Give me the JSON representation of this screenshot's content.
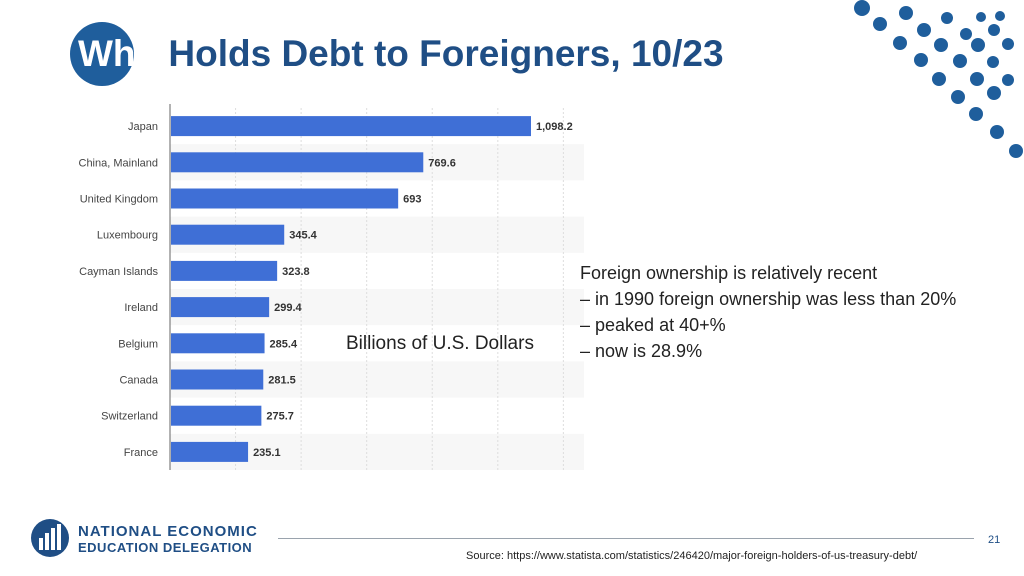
{
  "slide": {
    "title_prefix": "Who",
    "title_rest": " Holds Debt to Foreigners, 10/23",
    "units_note": "Billions of U.S. Dollars",
    "notes": [
      "Foreign ownership is relatively recent",
      "– in 1990 foreign ownership was less than 20%",
      "– peaked at 40+%",
      "– now is 28.9%"
    ],
    "page_number": "21",
    "source": "Source: https://www.statista.com/statistics/246420/major-foreign-holders-of-us-treasury-debt/"
  },
  "logo": {
    "line1": "NATIONAL ECONOMIC",
    "line2": "EDUCATION DELEGATION"
  },
  "colors": {
    "title": "#1f4e85",
    "accent_circle": "#1f5e9c",
    "bar": "#3f6fd6",
    "grid": "#dddddd"
  },
  "chart_data": {
    "type": "bar",
    "orientation": "horizontal",
    "categories": [
      "Japan",
      "China, Mainland",
      "United Kingdom",
      "Luxembourg",
      "Cayman Islands",
      "Ireland",
      "Belgium",
      "Canada",
      "Switzerland",
      "France"
    ],
    "values": [
      1098.2,
      769.6,
      693,
      345.4,
      323.8,
      299.4,
      285.4,
      281.5,
      275.7,
      235.1
    ],
    "value_labels": [
      "1,098.2",
      "769.6",
      "693",
      "345.4",
      "323.8",
      "299.4",
      "285.4",
      "281.5",
      "275.7",
      "235.1"
    ],
    "xlim": [
      0,
      1250
    ],
    "grid": true
  }
}
